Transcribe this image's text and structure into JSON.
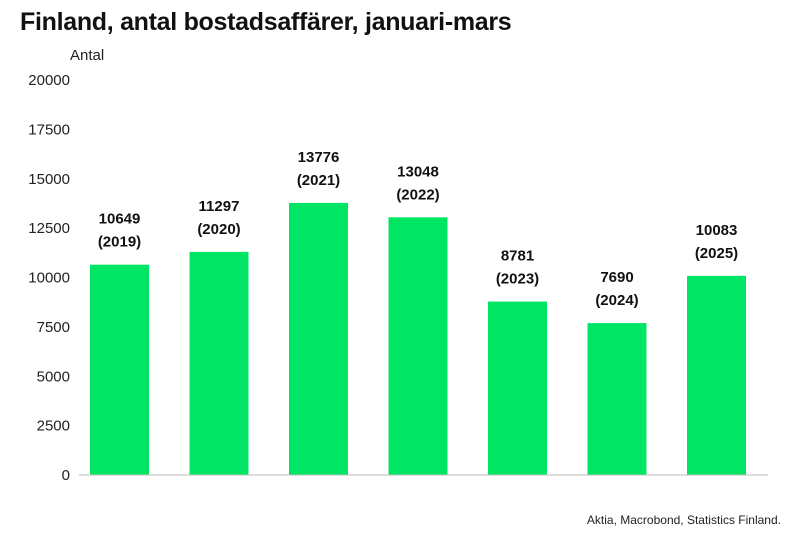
{
  "chart_data": {
    "type": "bar",
    "title": "Finland, antal bostadsaffärer, januari-mars",
    "ylabel": "Antal",
    "xlabel": "",
    "ylim": [
      0,
      20000
    ],
    "yticks": [
      0,
      2500,
      5000,
      7500,
      10000,
      12500,
      15000,
      17500,
      20000
    ],
    "categories": [
      "2019",
      "2020",
      "2021",
      "2022",
      "2023",
      "2024",
      "2025"
    ],
    "values": [
      10649,
      11297,
      13776,
      13048,
      8781,
      7690,
      10083
    ],
    "data_labels": [
      [
        "10649",
        "(2019)"
      ],
      [
        "11297",
        "(2020)"
      ],
      [
        "13776",
        "(2021)"
      ],
      [
        "13048",
        "(2022)"
      ],
      [
        "8781",
        "(2023)"
      ],
      [
        "7690",
        "(2024)"
      ],
      [
        "10083",
        "(2025)"
      ]
    ],
    "bar_color": "#00e564",
    "grid": false,
    "legend": "none",
    "source": "Aktia, Macrobond, Statistics Finland."
  }
}
